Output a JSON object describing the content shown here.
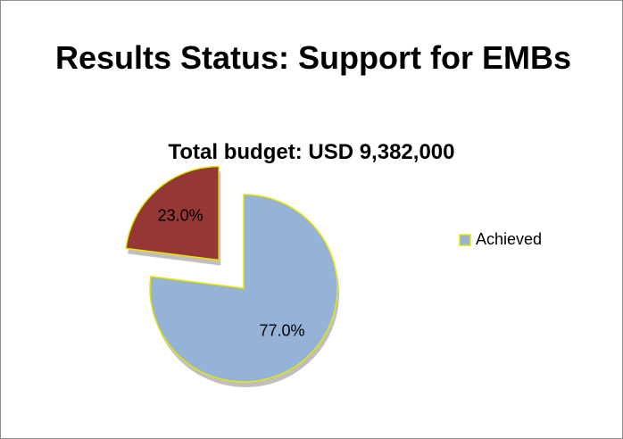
{
  "chart_data": {
    "type": "pie",
    "title": "Results Status: Support for EMBs",
    "subtitle": "Total budget: USD 9,382,000",
    "categories": [
      "Achieved",
      null
    ],
    "values": [
      77,
      23
    ],
    "value_labels": [
      "77.0%",
      "23.0%"
    ],
    "colors": [
      "#95b3d7",
      "#953735"
    ],
    "exploded": [
      false,
      true
    ],
    "legend": "right"
  }
}
